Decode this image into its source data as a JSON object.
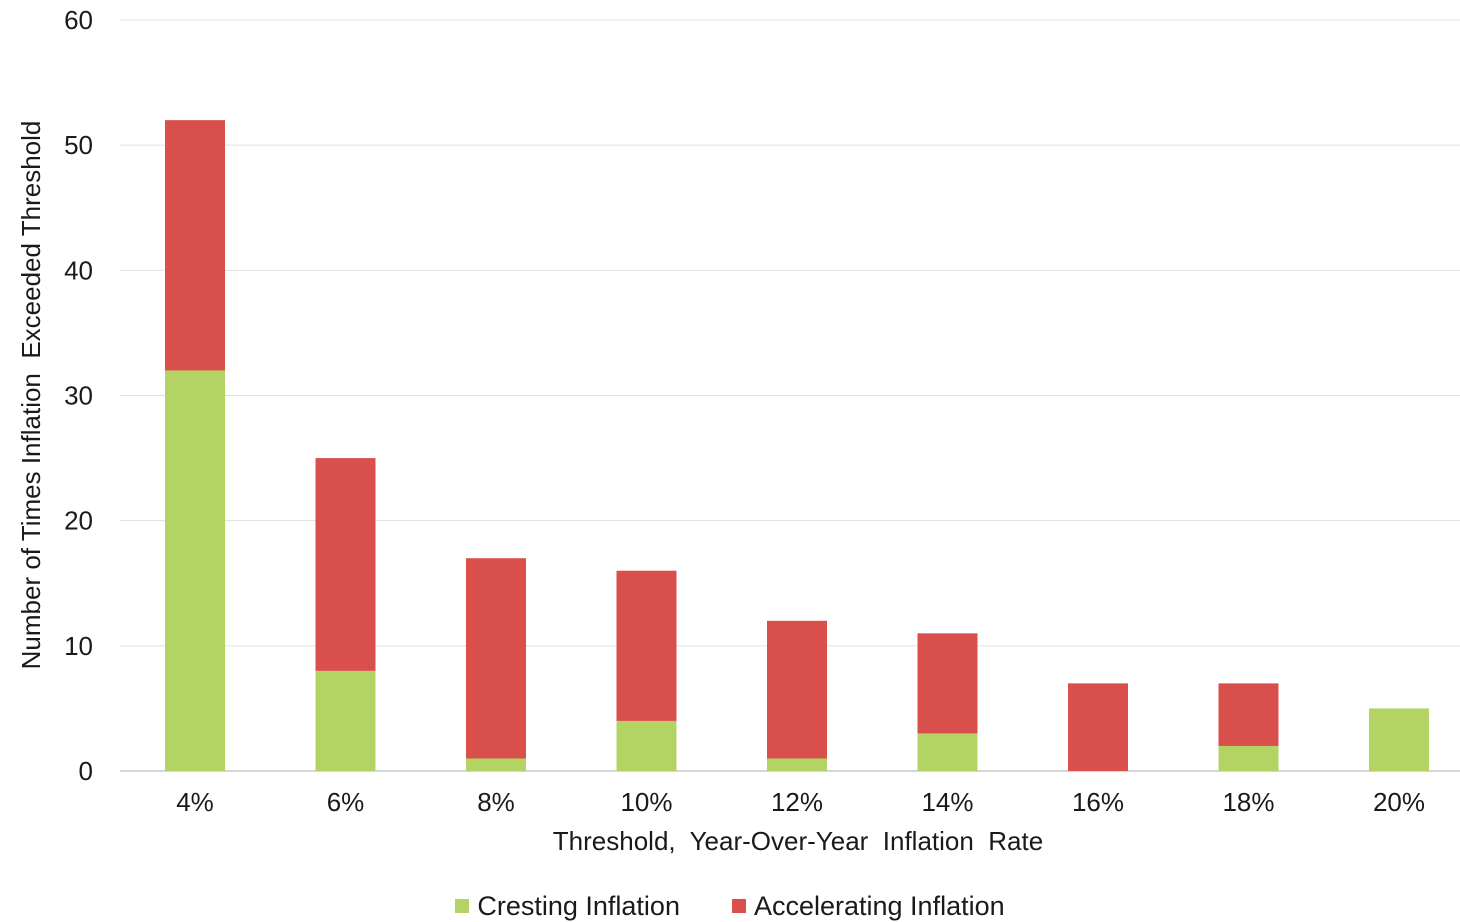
{
  "chart_data": {
    "type": "bar",
    "stacked": true,
    "title": "",
    "xlabel": "Threshold,  Year-Over-Year  Inflation  Rate",
    "ylabel": "Number of Times Inflation  Exceeded Threshold",
    "ylim": [
      0,
      60
    ],
    "yticks": [
      0,
      10,
      20,
      30,
      40,
      50,
      60
    ],
    "grid": true,
    "legend_position": "bottom",
    "categories": [
      "4%",
      "6%",
      "8%",
      "10%",
      "12%",
      "14%",
      "16%",
      "18%",
      "20%"
    ],
    "series": [
      {
        "name": "Cresting Inflation",
        "color": "#b3d465",
        "values": [
          32,
          8,
          1,
          4,
          1,
          3,
          0,
          2,
          5
        ]
      },
      {
        "name": "Accelerating Inflation",
        "color": "#d94f4c",
        "values": [
          20,
          17,
          16,
          12,
          11,
          8,
          7,
          5,
          0
        ]
      }
    ]
  }
}
